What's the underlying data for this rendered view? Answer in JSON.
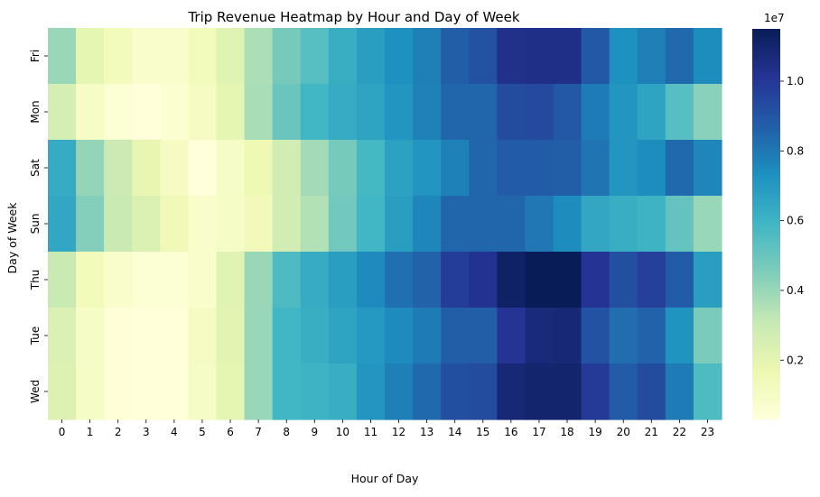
{
  "chart_data": {
    "type": "heatmap",
    "title": "Trip Revenue Heatmap by Hour and Day of Week",
    "xlabel": "Hour of Day",
    "ylabel": "Day of Week",
    "x_categories": [
      "0",
      "1",
      "2",
      "3",
      "4",
      "5",
      "6",
      "7",
      "8",
      "9",
      "10",
      "11",
      "12",
      "13",
      "14",
      "15",
      "16",
      "17",
      "18",
      "19",
      "20",
      "21",
      "22",
      "23"
    ],
    "y_categories": [
      "Fri",
      "Mon",
      "Sat",
      "Sun",
      "Thu",
      "Tue",
      "Wed"
    ],
    "values": [
      [
        4.0,
        2.0,
        1.3,
        0.8,
        0.8,
        1.3,
        2.2,
        3.6,
        4.7,
        5.4,
        6.2,
        6.8,
        7.3,
        7.8,
        8.7,
        9.1,
        10.3,
        10.4,
        10.4,
        8.9,
        7.3,
        7.8,
        8.4,
        7.4
      ],
      [
        2.6,
        1.0,
        0.5,
        0.3,
        0.6,
        1.1,
        2.0,
        3.7,
        5.0,
        5.9,
        6.3,
        6.6,
        7.1,
        7.7,
        8.5,
        8.5,
        9.3,
        9.4,
        8.9,
        7.9,
        7.1,
        6.6,
        5.4,
        4.3
      ],
      [
        6.3,
        4.1,
        2.9,
        1.9,
        1.1,
        0.3,
        1.0,
        1.6,
        2.7,
        3.8,
        4.7,
        5.8,
        6.7,
        7.1,
        7.7,
        8.5,
        8.8,
        8.8,
        8.7,
        8.1,
        7.1,
        7.4,
        8.4,
        7.6
      ],
      [
        6.5,
        4.4,
        3.0,
        2.4,
        1.5,
        0.8,
        1.0,
        1.4,
        2.7,
        3.5,
        4.8,
        5.9,
        6.8,
        7.6,
        8.5,
        8.5,
        8.5,
        8.0,
        7.4,
        6.5,
        6.2,
        6.0,
        5.1,
        4.0
      ],
      [
        3.0,
        1.3,
        0.8,
        0.5,
        0.5,
        0.8,
        2.2,
        4.0,
        5.6,
        6.3,
        6.8,
        7.5,
        8.2,
        8.6,
        9.8,
        10.2,
        11.2,
        11.5,
        11.5,
        10.1,
        9.2,
        9.7,
        8.8,
        6.8
      ],
      [
        2.4,
        1.0,
        0.4,
        0.3,
        0.3,
        1.1,
        2.1,
        4.0,
        5.9,
        6.2,
        6.6,
        7.0,
        7.5,
        7.9,
        8.7,
        8.7,
        10.1,
        10.7,
        10.8,
        9.1,
        8.3,
        8.6,
        7.2,
        4.6
      ],
      [
        2.3,
        1.0,
        0.4,
        0.3,
        0.3,
        1.0,
        2.0,
        4.0,
        5.9,
        6.0,
        6.2,
        7.1,
        7.8,
        8.4,
        9.2,
        9.3,
        10.8,
        11.0,
        11.0,
        9.9,
        8.8,
        9.3,
        7.9,
        5.6
      ]
    ],
    "value_scale_multiplier_label": "1e7",
    "colorbar_ticks": [
      0.2,
      0.4,
      0.6,
      0.8,
      1.0
    ],
    "colorbar_tick_labels": [
      "0.2",
      "0.4",
      "0.6",
      "0.8",
      "1.0"
    ],
    "vmin": 0.3,
    "vmax": 11.5,
    "value_units_note": "cell values in millions (×1e6); colorbar ticks in ×1e7",
    "colormap": "YlGnBu",
    "colormap_stops": [
      "#ffffd9",
      "#edf8b1",
      "#c7e9b4",
      "#7fcdbb",
      "#41b6c4",
      "#1d91c0",
      "#225ea8",
      "#253494",
      "#081d58"
    ],
    "legend_placement": "right (colorbar)",
    "grid": false
  }
}
